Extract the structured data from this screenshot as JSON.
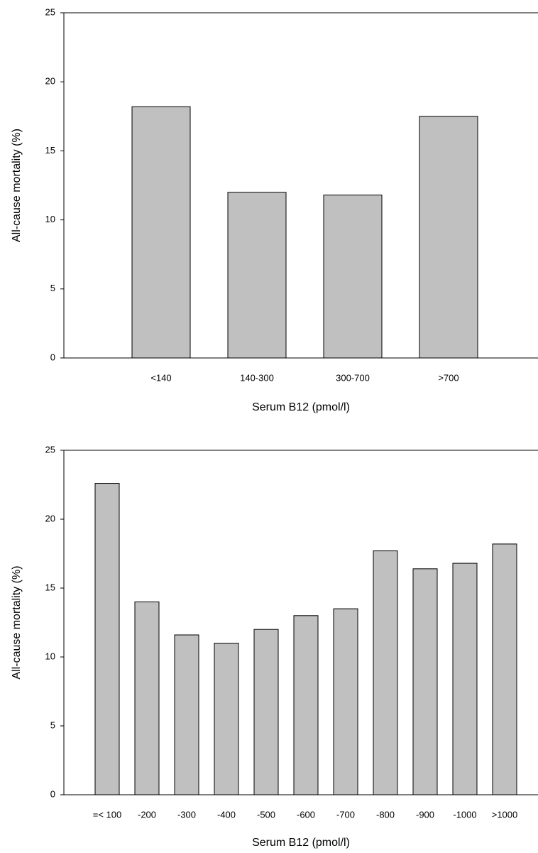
{
  "chart_data": [
    {
      "type": "bar",
      "xlabel": "Serum B12 (pmol/l)",
      "ylabel": "All-cause mortality (%)",
      "categories": [
        "<140",
        "140-300",
        "300-700",
        ">700"
      ],
      "values": [
        18.2,
        12.0,
        11.8,
        17.5
      ],
      "color": "#c0c0c0",
      "ylim": [
        0,
        25
      ],
      "yticks": [
        0,
        5,
        10,
        15,
        20,
        25
      ]
    },
    {
      "type": "bar",
      "xlabel": "Serum B12 (pmol/l)",
      "ylabel": "All-cause mortality (%)",
      "categories": [
        "=< 100",
        "-200",
        "-300",
        "-400",
        "-500",
        "-600",
        "-700",
        "-800",
        "-900",
        "-1000",
        ">1000"
      ],
      "values": [
        22.6,
        14.0,
        11.6,
        11.0,
        12.0,
        13.0,
        13.5,
        17.7,
        16.4,
        16.8,
        18.2
      ],
      "color": "#c0c0c0",
      "ylim": [
        0,
        25
      ],
      "yticks": [
        0,
        5,
        10,
        15,
        20,
        25
      ]
    }
  ]
}
